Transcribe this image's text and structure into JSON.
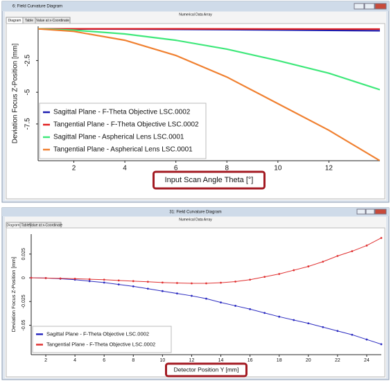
{
  "windows": [
    {
      "title": "6: Field Curvature Diagram",
      "header": "Numerical Data Array",
      "tabs": [
        "Diagram",
        "Table",
        "Value at x-Coordinate"
      ]
    },
    {
      "title": "31: Field Curvature Diagram",
      "header": "Numerical Data Array",
      "tabs": [
        "Diagram",
        "Table",
        "Value at x-Coordinate"
      ]
    }
  ],
  "chart_data": [
    {
      "type": "line",
      "xlabel": "Input Scan Angle Theta [°]",
      "ylabel": "Deviation Focus Z-Position [mm]",
      "x": [
        0.6,
        2,
        4,
        6,
        8,
        10,
        12,
        14
      ],
      "series": [
        {
          "name": "Sagittal Plane - F-Theta Objective LSC.0002",
          "color": "#1c1cb0",
          "values": [
            0,
            -0.01,
            -0.02,
            -0.04,
            -0.06,
            -0.09,
            -0.12,
            -0.15
          ]
        },
        {
          "name": "Tangential Plane - F-Theta Objective LSC.0002",
          "color": "#e02020",
          "values": [
            0,
            0,
            0,
            0,
            -0.005,
            -0.01,
            -0.015,
            -0.02
          ]
        },
        {
          "name": "Sagittal Plane - Aspherical Lens LSC.0001",
          "color": "#3ee87a",
          "values": [
            0,
            -0.1,
            -0.4,
            -0.9,
            -1.6,
            -2.5,
            -3.5,
            -4.8
          ]
        },
        {
          "name": "Tangential Plane - Aspherical Lens LSC.0001",
          "color": "#f08030",
          "values": [
            0,
            -0.2,
            -0.9,
            -2.1,
            -3.8,
            -5.9,
            -8.0,
            -10.4
          ]
        }
      ],
      "xlim": [
        0.6,
        14
      ],
      "ylim": [
        -10.4,
        0.2
      ],
      "xticks": [
        2,
        4,
        6,
        8,
        10,
        12
      ],
      "yticks": [
        -2.5,
        -5,
        -7.5
      ],
      "legend": "lower left",
      "markers": false
    },
    {
      "type": "line",
      "xlabel": "Detector Position Y [mm]",
      "ylabel": "Deviation Focus Z-Position [mm]",
      "x": [
        1,
        2,
        3,
        4,
        5,
        6,
        7,
        8,
        9,
        10,
        11,
        12,
        13,
        14,
        15,
        16,
        17,
        18,
        19,
        20,
        21,
        22,
        23,
        24,
        25
      ],
      "series": [
        {
          "name": "Sagittal Plane - F-Theta Objective LSC.0002",
          "color": "#2a2ac0",
          "values": [
            0,
            -0.0003,
            -0.001,
            -0.002,
            -0.0035,
            -0.005,
            -0.007,
            -0.009,
            -0.0115,
            -0.014,
            -0.0165,
            -0.019,
            -0.022,
            -0.026,
            -0.0295,
            -0.033,
            -0.037,
            -0.041,
            -0.0445,
            -0.048,
            -0.052,
            -0.056,
            -0.06,
            -0.065,
            -0.07
          ]
        },
        {
          "name": "Tangential Plane - F-Theta Objective LSC.0002",
          "color": "#e03030",
          "values": [
            0,
            -0.0003,
            -0.0006,
            -0.001,
            -0.0015,
            -0.002,
            -0.0028,
            -0.0035,
            -0.0042,
            -0.005,
            -0.0055,
            -0.0058,
            -0.0058,
            -0.0052,
            -0.004,
            -0.002,
            0.001,
            0.004,
            0.008,
            0.012,
            0.017,
            0.023,
            0.028,
            0.034,
            0.042
          ]
        }
      ],
      "xlim": [
        1,
        25
      ],
      "ylim": [
        -0.081,
        0.046
      ],
      "xticks": [
        2,
        4,
        6,
        8,
        10,
        12,
        14,
        16,
        18,
        20,
        22,
        24
      ],
      "yticks": [
        0.025,
        0,
        -0.025,
        -0.05
      ],
      "legend": "lower left",
      "markers": true
    }
  ]
}
